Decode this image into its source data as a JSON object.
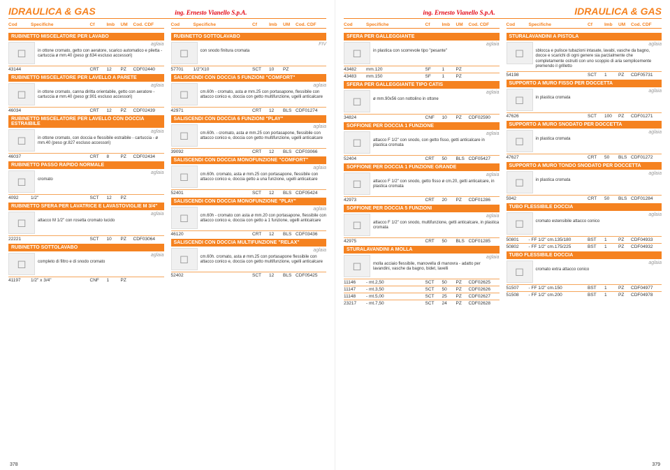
{
  "header": {
    "title": "IDRAULICA & GAS",
    "brand_logo": "ing. Ernesto Vianello S.p.A."
  },
  "cols": {
    "cod": "Cod",
    "spec": "Specifiche",
    "cf": "Cf",
    "imb": "Imb",
    "um": "UM",
    "cdf": "Cod. CDF"
  },
  "page_left_num": "378",
  "page_right_num": "379",
  "brand_generic": "aglaia",
  "sections": {
    "l1": [
      {
        "title": "RUBINETTO MISCELATORE PER LAVABO",
        "desc": "in ottone cromato, getto con aeratore, scarico automatico e piletta - cartuccia ø mm.40 (peso gr.634 escluso accessori)",
        "rows": [
          [
            "43144",
            "",
            "CRT",
            "12",
            "PZ",
            "CDF02440"
          ]
        ]
      },
      {
        "title": "RUBINETTO MISCELATORE PER LAVELLO A PARETE",
        "desc": "in ottone cromato, canna diritta orientabile, getto con aeratore - cartuccia ø mm.40 (peso gr.901 escluso accessori)",
        "rows": [
          [
            "46034",
            "",
            "CRT",
            "12",
            "PZ",
            "CDF02439"
          ]
        ]
      },
      {
        "title": "RUBINETTO MISCELATORE PER LAVELLO CON DOCCIA ESTRAIBILE",
        "desc": "in ottone cromato, con doccia e flessibile estraibile - cartuccia - ø mm.40 (peso gr.827 escluso accessori)",
        "rows": [
          [
            "46037",
            "",
            "CRT",
            "8",
            "PZ",
            "CDF02434"
          ]
        ]
      },
      {
        "title": "RUBINETTO PASSO RAPIDO NORMALE",
        "desc": "cromato",
        "rows": [
          [
            "4092",
            "1/2\"",
            "SCT",
            "12",
            "PZ",
            ""
          ]
        ]
      },
      {
        "title": "RUBINETTO SFERA PER LAVATRICE E LAVASTOVIGLIE M 3/4\"",
        "desc": "attacco M 1/2\" con rosetta cromato lucido",
        "rows": [
          [
            "22221",
            "",
            "SCT",
            "10",
            "PZ",
            "CDF03064"
          ]
        ]
      },
      {
        "title": "RUBINETTO SOTTOLAVABO",
        "desc": "completo di filtro e di snodo cromato",
        "rows": [
          [
            "41197",
            "1/2\" x 3/4\"",
            "CNF",
            "1",
            "PZ",
            ""
          ]
        ]
      }
    ],
    "l2": [
      {
        "title": "RUBINETTO SOTTOLAVABO",
        "desc": "con snodo finitura cromata",
        "brand_extra": "FIV",
        "rows": [
          [
            "57701",
            "1/2\"X10",
            "SCT",
            "10",
            "PZ",
            ""
          ]
        ]
      },
      {
        "title": "SALISCENDI CON DOCCIA 5 FUNZIONI \"COMFORT\"",
        "desc": "cm.60h - cromato, asta ø mm.25 con portasapone, flessibile con attacco conico e, doccia con getto multifunzione, ugelli anticalcare",
        "rows": [
          [
            "42971",
            "",
            "CRT",
            "12",
            "BLS",
            "CDF01274"
          ]
        ]
      },
      {
        "title": "SALISCENDI CON DOCCIA 6 FUNZIONI \"PLAY\"",
        "desc": "cm.60h. - cromato, asta ø mm.25 con portasapone, flessibile con attacco conico e, doccia con getto multifunzione, ugelli anticalcare",
        "rows": [
          [
            "39092",
            "",
            "CRT",
            "12",
            "BLS",
            "CDF03066"
          ]
        ]
      },
      {
        "title": "SALISCENDI CON DOCCIA MONOFUNZIONE \"COMFORT\"",
        "desc": "cm.60h. cromato, asta ø mm.25 con portasapone, flessibile con attacco conico e, doccia getto a una funzione, ugelli anticalcare",
        "rows": [
          [
            "52401",
            "",
            "SCT",
            "12",
            "BLS",
            "CDF05424"
          ]
        ]
      },
      {
        "title": "SALISCENDI CON DOCCIA MONOFUNZIONE \"PLAY\"",
        "desc": "cm.60h - cromato con asta ø mm.20 con portasapone, flessibile con attacco conico e, doccia con getto a 1 funzione, ugelli anticalcare",
        "rows": [
          [
            "46120",
            "",
            "CRT",
            "12",
            "BLS",
            "CDF03436"
          ]
        ]
      },
      {
        "title": "SALISCENDI CON DOCCIA MULTIFUNZIONE \"RELAX\"",
        "desc": "cm.60h. cromato, asta ø mm.25 con portasapone flessibile con attacco conico e, doccia con getto multifunzione, ugelli anticalcare",
        "rows": [
          [
            "52402",
            "",
            "SCT",
            "12",
            "BLS",
            "CDF05425"
          ]
        ]
      }
    ],
    "r1": [
      {
        "title": "SFERA PER GALLEGGIANTE",
        "desc": "in plastica con scorrevole tipo \"pesante\"",
        "rows": [
          [
            "43482",
            "mm.120",
            "SF",
            "1",
            "PZ",
            ""
          ],
          [
            "43483",
            "mm.150",
            "SF",
            "1",
            "PZ",
            ""
          ]
        ]
      },
      {
        "title": "SFERA PER GALLEGGIANTE TIPO CATIS",
        "desc": "ø mm.90x56 con nottolino in ottone",
        "rows": [
          [
            "34824",
            "",
            "CNF",
            "10",
            "PZ",
            "CDF02590"
          ]
        ]
      },
      {
        "title": "SOFFIONE PER DOCCIA 1 FUNZIONE",
        "desc": "attacco F 1/2\" con snodo, con getto fisso, getti anticalcare in plastica cromata",
        "rows": [
          [
            "52404",
            "",
            "CRT",
            "50",
            "BLS",
            "CDF05427"
          ]
        ]
      },
      {
        "title": "SOFFIONE PER DOCCIA 1 FUNZIONE GRANDE",
        "desc": "attacco F 1/2\" con snodo, getto fisso ø cm.20, getti anticalcare, in plastica cromata",
        "rows": [
          [
            "42973",
            "",
            "CRT",
            "20",
            "PZ",
            "CDF01286"
          ]
        ]
      },
      {
        "title": "SOFFIONE PER DOCCIA 5 FUNZIONI",
        "desc": "attacco F 1/2\" con snodo, multifunzione, getti anticalcare, in plastica cromata",
        "rows": [
          [
            "42975",
            "",
            "CRT",
            "50",
            "BLS",
            "CDF01285"
          ]
        ]
      },
      {
        "title": "STURALAVANDINI A MOLLA",
        "desc": "molla acciaio flessibile, manovella di manovra - adatto per lavandini, vasche da bagno, bidet, lavelli",
        "rows": [
          [
            "11146",
            "- mt.2,50",
            "SCT",
            "50",
            "PZ",
            "CDF02625"
          ],
          [
            "11147",
            "- mt.3,50",
            "SCT",
            "50",
            "PZ",
            "CDF02626"
          ],
          [
            "11148",
            "- mt.5,00",
            "SCT",
            "25",
            "PZ",
            "CDF02627"
          ],
          [
            "23217",
            "- mt.7,50",
            "SCT",
            "24",
            "PZ",
            "CDF02628"
          ]
        ]
      }
    ],
    "r2": [
      {
        "title": "STURALAVANDINI A PISTOLA",
        "desc": "sblocca e pulisce tubazioni intasate, lavabi, vasche da bagno, docce e scarichi di ogni genere sia parzialmente che completamente ostruiti con uno scoppio di aria semplicemente premendo il grilletto",
        "rows": [
          [
            "54198",
            "",
            "SCT",
            "1",
            "PZ",
            "CDF05731"
          ]
        ]
      },
      {
        "title": "SUPPORTO A MURO FISSO PER DOCCETTA",
        "desc": "in plastica cromata",
        "rows": [
          [
            "47626",
            "",
            "SCT",
            "100",
            "PZ",
            "CDF01271"
          ]
        ]
      },
      {
        "title": "SUPPORTO A MURO SNODATO PER DOCCETTA",
        "desc": "in plastica cromata",
        "rows": [
          [
            "47627",
            "",
            "CRT",
            "50",
            "BLS",
            "CDF01272"
          ]
        ]
      },
      {
        "title": "SUPPORTO A MURO TONDO SNODATO PER DOCCETTA",
        "desc": "in plastica cromata",
        "rows": [
          [
            "5942",
            "",
            "CRT",
            "50",
            "BLS",
            "CDF01284"
          ]
        ]
      },
      {
        "title": "TUBO FLESSIBILE DOCCIA",
        "desc": "cromato estensibile attacco conico",
        "rows": [
          [
            "50801",
            "- FF 1/2\" cm.135/180",
            "BST",
            "1",
            "PZ",
            "CDF04933"
          ],
          [
            "50802",
            "- FF 1/2\" cm.175/225",
            "BST",
            "1",
            "PZ",
            "CDF04932"
          ]
        ]
      },
      {
        "title": "TUBO FLESSIBILE DOCCIA",
        "desc": "cromato extra attacco conico",
        "rows": [
          [
            "51507",
            "- FF 1/2\" cm.150",
            "BST",
            "1",
            "PZ",
            "CDF04977"
          ],
          [
            "51508",
            "- FF 1/2\" cm.200",
            "BST",
            "1",
            "PZ",
            "CDF04978"
          ]
        ]
      }
    ]
  }
}
